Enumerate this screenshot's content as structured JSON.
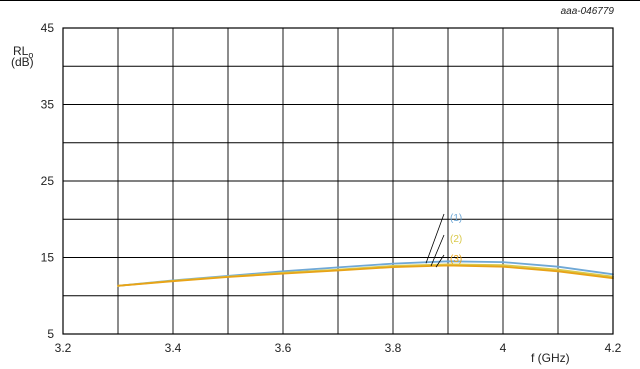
{
  "figure_id": "aaa-046779",
  "chart_data": {
    "type": "line",
    "title": "",
    "ylabel_main": "RL",
    "ylabel_sub": "o",
    "ylabel_unit": "(dB)",
    "xlabel": "f (GHz)",
    "xlim": [
      3.2,
      4.2
    ],
    "ylim": [
      5,
      45
    ],
    "x_ticks": [
      "3.2",
      "3.4",
      "3.6",
      "3.8",
      "4",
      "4.2"
    ],
    "y_ticks": [
      "5",
      "15",
      "25",
      "35",
      "45"
    ],
    "grid": true,
    "series": [
      {
        "name": "(1)",
        "color": "#6fa8d6",
        "x": [
          3.3,
          3.4,
          3.5,
          3.6,
          3.7,
          3.8,
          3.9,
          4.0,
          4.1,
          4.2
        ],
        "y": [
          11.3,
          12.0,
          12.6,
          13.2,
          13.7,
          14.2,
          14.5,
          14.4,
          13.8,
          12.8
        ]
      },
      {
        "name": "(2)",
        "color": "#d9c94a",
        "x": [
          3.3,
          3.4,
          3.5,
          3.6,
          3.7,
          3.8,
          3.9,
          4.0,
          4.1,
          4.2
        ],
        "y": [
          11.3,
          11.95,
          12.5,
          13.0,
          13.4,
          13.9,
          14.1,
          14.0,
          13.4,
          12.5
        ]
      },
      {
        "name": "(3)",
        "color": "#e8a317",
        "x": [
          3.3,
          3.4,
          3.5,
          3.6,
          3.7,
          3.8,
          3.9,
          4.0,
          4.1,
          4.2
        ],
        "y": [
          11.3,
          11.9,
          12.45,
          12.9,
          13.3,
          13.75,
          13.95,
          13.8,
          13.2,
          12.3
        ]
      }
    ]
  }
}
